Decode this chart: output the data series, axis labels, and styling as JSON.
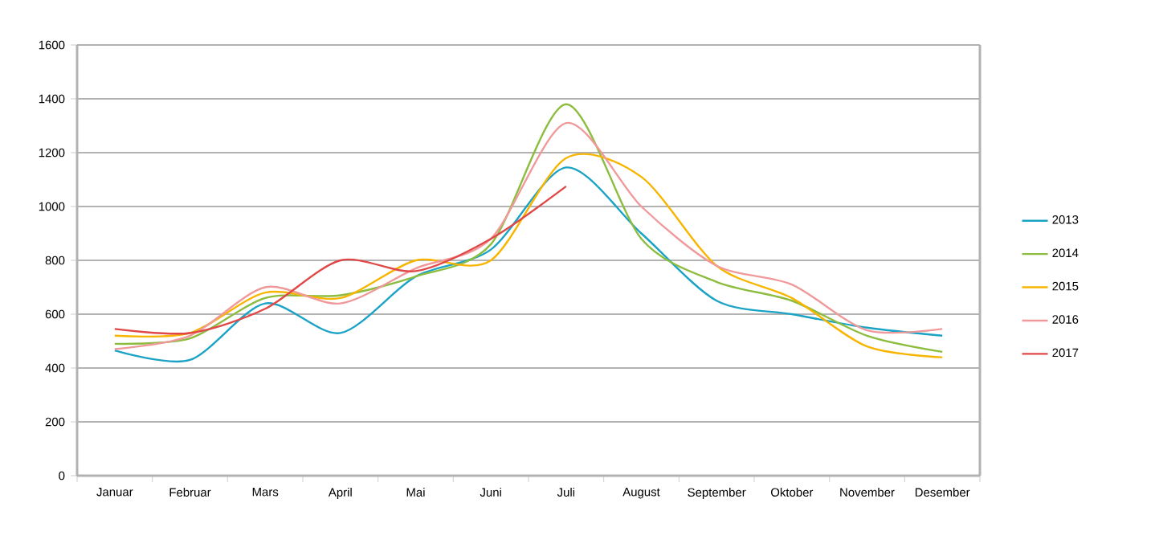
{
  "chart_data": {
    "type": "line",
    "categories": [
      "Januar",
      "Februar",
      "Mars",
      "April",
      "Mai",
      "Juni",
      "Juli",
      "August",
      "September",
      "Oktober",
      "November",
      "Desember"
    ],
    "series": [
      {
        "name": "2013",
        "color": "#1ba3c6",
        "values": [
          465,
          430,
          640,
          530,
          740,
          840,
          1145,
          900,
          650,
          600,
          550,
          520
        ]
      },
      {
        "name": "2014",
        "color": "#8cbd3f",
        "values": [
          490,
          510,
          660,
          670,
          740,
          860,
          1380,
          880,
          720,
          650,
          520,
          460
        ]
      },
      {
        "name": "2015",
        "color": "#f7b500",
        "values": [
          520,
          530,
          680,
          660,
          800,
          800,
          1180,
          1110,
          780,
          660,
          480,
          440
        ]
      },
      {
        "name": "2016",
        "color": "#f0999a",
        "values": [
          470,
          520,
          700,
          640,
          770,
          880,
          1310,
          1000,
          780,
          710,
          540,
          545
        ]
      },
      {
        "name": "2017",
        "color": "#e04848",
        "values": [
          545,
          530,
          620,
          800,
          760,
          880,
          1075,
          null,
          null,
          null,
          null,
          null
        ]
      }
    ],
    "ylim": [
      0,
      1600
    ],
    "yticks": [
      0,
      200,
      400,
      600,
      800,
      1000,
      1200,
      1400,
      1600
    ],
    "grid": "y",
    "legend": "right"
  }
}
